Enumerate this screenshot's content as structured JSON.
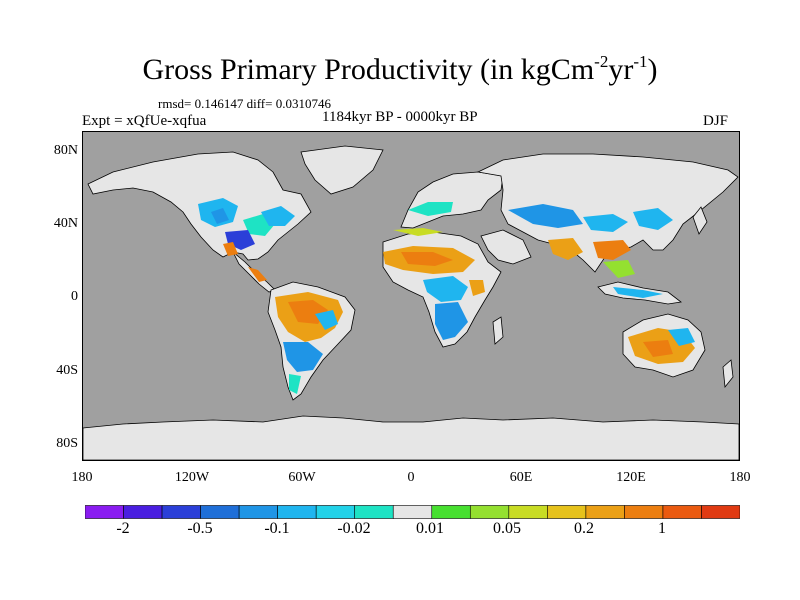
{
  "header": {
    "title_main": "Gross Primary Productivity (in kgCm",
    "title_exp1": "-2",
    "title_mid": "yr",
    "title_exp2": "-1",
    "title_end": ")",
    "stats": "rmsd= 0.146147 diff= 0.0310746",
    "experiment": "Expt = xQfUe-xqfua",
    "period": "1184kyr BP - 0000kyr BP",
    "season": "DJF"
  },
  "map": {
    "ocean_color": "#a0a0a0",
    "land_color": "#e6e6e6",
    "lat_labels": [
      "80N",
      "40N",
      "0",
      "40S",
      "80S"
    ],
    "lon_labels": [
      "180",
      "120W",
      "60W",
      "0",
      "60E",
      "120E",
      "180"
    ]
  },
  "colorbar": {
    "colors": [
      "#8a1cf0",
      "#4a1ee0",
      "#2b3fd8",
      "#1f6fd8",
      "#1f95e6",
      "#1fb5ef",
      "#22d2e8",
      "#1ee3c4",
      "#e6e6e6",
      "#47e030",
      "#94e030",
      "#c8dc24",
      "#e6c21c",
      "#eba016",
      "#ec7e10",
      "#ea5a10",
      "#e03a12"
    ],
    "labels": [
      "-2",
      "-0.5",
      "-0.1",
      "-0.02",
      "0.01",
      "0.05",
      "0.2",
      "1"
    ]
  }
}
